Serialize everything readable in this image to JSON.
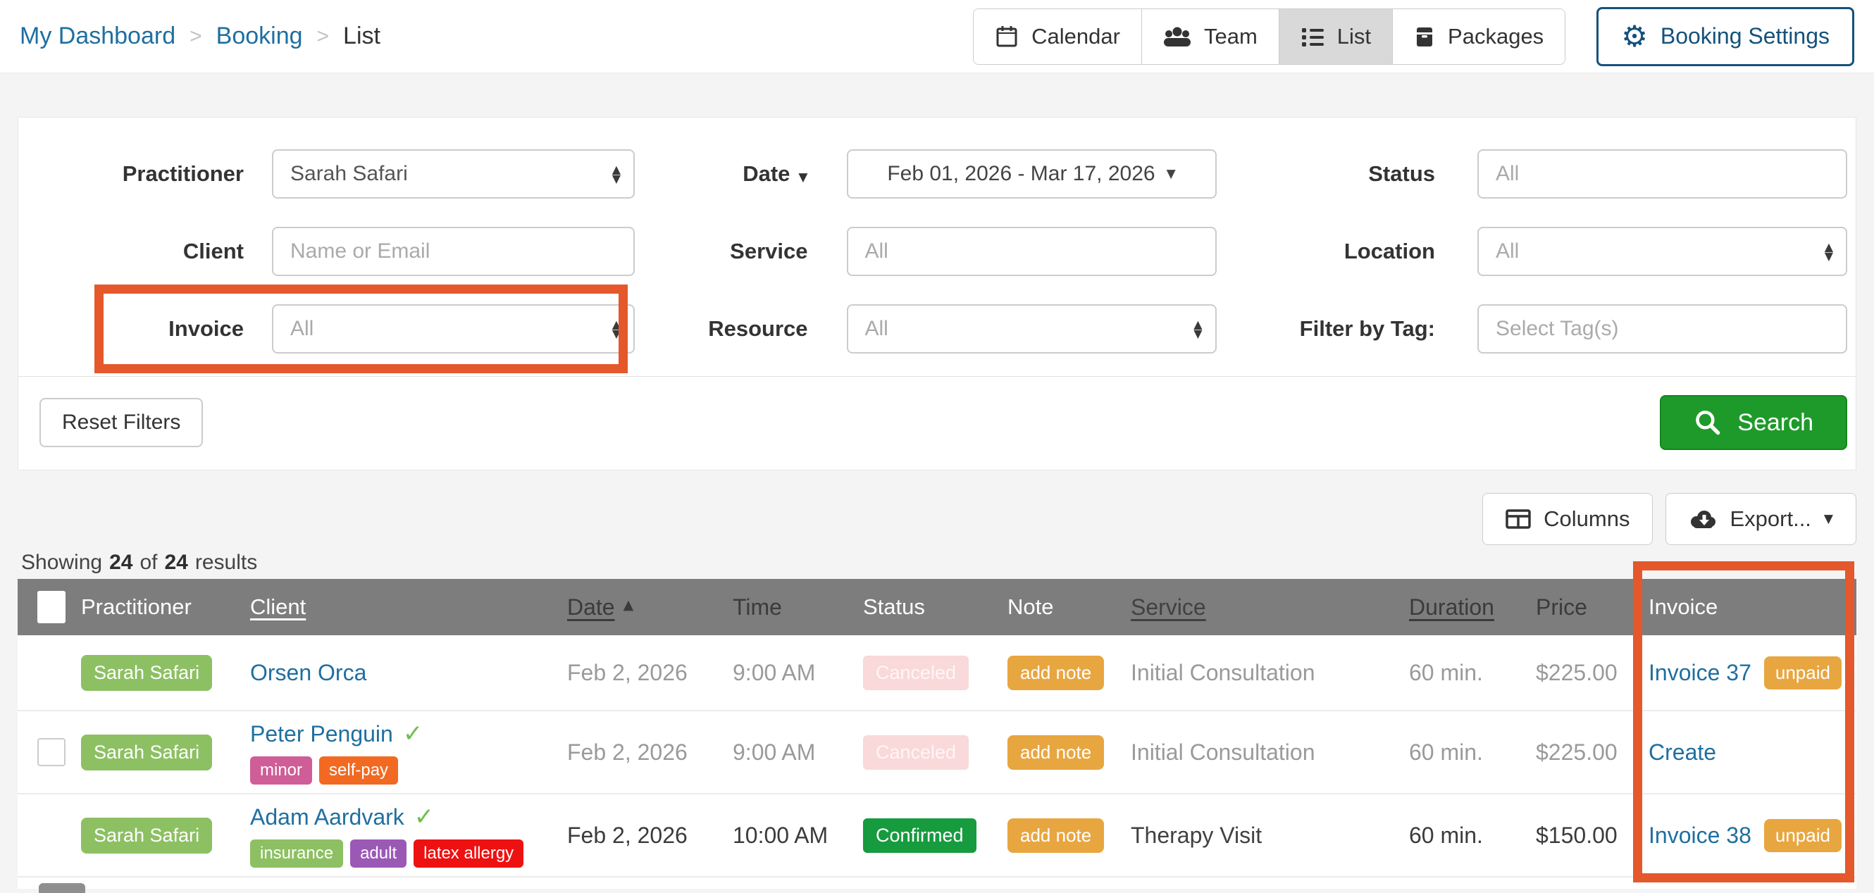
{
  "breadcrumb": {
    "separator": ">",
    "items": [
      {
        "label": "My Dashboard"
      },
      {
        "label": "Booking"
      },
      {
        "label": "List"
      }
    ]
  },
  "nav": {
    "view_tabs": [
      {
        "label": "Calendar",
        "icon": "calendar-icon",
        "active": false
      },
      {
        "label": "Team",
        "icon": "team-icon",
        "active": false
      },
      {
        "label": "List",
        "icon": "list-icon",
        "active": true
      },
      {
        "label": "Packages",
        "icon": "packages-icon",
        "active": false
      }
    ],
    "settings_button": {
      "label": "Booking Settings",
      "icon": "gear-icon"
    }
  },
  "filters": {
    "practitioner": {
      "label": "Practitioner",
      "value": "Sarah Safari"
    },
    "date": {
      "label": "Date",
      "value": "Feb 01, 2026 - Mar 17, 2026"
    },
    "status": {
      "label": "Status",
      "value": "All"
    },
    "client": {
      "label": "Client",
      "placeholder": "Name or Email"
    },
    "service": {
      "label": "Service",
      "value": "All"
    },
    "location": {
      "label": "Location",
      "value": "All"
    },
    "invoice": {
      "label": "Invoice",
      "value": "All",
      "highlighted": true
    },
    "resource": {
      "label": "Resource",
      "value": "All"
    },
    "tag": {
      "label": "Filter by Tag:",
      "placeholder": "Select Tag(s)"
    },
    "reset_button": "Reset Filters",
    "search_button": "Search"
  },
  "toolbar": {
    "columns_button": "Columns",
    "export_button": "Export..."
  },
  "results": {
    "prefix": "Showing",
    "shown": "24",
    "of": "of",
    "total": "24",
    "suffix": "results"
  },
  "table": {
    "headers": {
      "practitioner": "Practitioner",
      "client": "Client",
      "date": "Date",
      "time": "Time",
      "status": "Status",
      "note": "Note",
      "service": "Service",
      "duration": "Duration",
      "price": "Price",
      "invoice": "Invoice"
    },
    "rows": [
      {
        "checkbox": false,
        "practitioner": "Sarah Safari",
        "client": {
          "name": "Orsen Orca",
          "verified": false,
          "tags": []
        },
        "date": "Feb 2, 2026",
        "time": "9:00 AM",
        "status": {
          "label": "Canceled",
          "type": "canceled"
        },
        "note": "add note",
        "service": "Initial Consultation",
        "duration": "60 min.",
        "price": "$225.00",
        "invoice": {
          "link": "Invoice 37",
          "badge": "unpaid"
        },
        "muted": true
      },
      {
        "checkbox": true,
        "practitioner": "Sarah Safari",
        "client": {
          "name": "Peter Penguin",
          "verified": true,
          "tags": [
            {
              "label": "minor",
              "color": "#CF5D97"
            },
            {
              "label": "self-pay",
              "color": "#F26A21"
            }
          ]
        },
        "date": "Feb 2, 2026",
        "time": "9:00 AM",
        "status": {
          "label": "Canceled",
          "type": "canceled"
        },
        "note": "add note",
        "service": "Initial Consultation",
        "duration": "60 min.",
        "price": "$225.00",
        "invoice": {
          "link": "Create",
          "badge": ""
        },
        "muted": true
      },
      {
        "checkbox": false,
        "practitioner": "Sarah Safari",
        "client": {
          "name": "Adam Aardvark",
          "verified": true,
          "tags": [
            {
              "label": "insurance",
              "color": "#8DC063"
            },
            {
              "label": "adult",
              "color": "#9B59B6"
            },
            {
              "label": "latex allergy",
              "color": "#EE1111"
            }
          ]
        },
        "date": "Feb 2, 2026",
        "time": "10:00 AM",
        "status": {
          "label": "Confirmed",
          "type": "confirmed"
        },
        "note": "add note",
        "service": "Therapy Visit",
        "duration": "60 min.",
        "price": "$150.00",
        "invoice": {
          "link": "Invoice 38",
          "badge": "unpaid"
        },
        "muted": false
      }
    ]
  },
  "icons": {
    "sort_asc": "▲",
    "caret_down": "▼",
    "select_up": "▲",
    "select_down": "▼",
    "gear": "⚙",
    "verified_check": "✓"
  },
  "colors": {
    "highlight_orange": "#E4582B",
    "link_blue": "#1F6FA0",
    "settings_blue": "#15527A",
    "search_green": "#1E9A2A",
    "header_gray": "#7D7D7D",
    "practitioner_green": "#8DC063",
    "note_orange": "#E8A640",
    "confirmed_green": "#169B3E",
    "canceled_pink": "#F9D9D9"
  }
}
